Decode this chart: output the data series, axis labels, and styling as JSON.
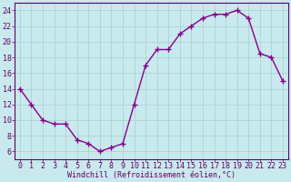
{
  "x": [
    0,
    1,
    2,
    3,
    4,
    5,
    6,
    7,
    8,
    9,
    10,
    11,
    12,
    13,
    14,
    15,
    16,
    17,
    18,
    19,
    20,
    21,
    22,
    23
  ],
  "y": [
    14,
    12,
    10,
    9.5,
    9.5,
    7.5,
    7,
    6,
    6.5,
    7,
    12,
    17,
    19,
    19,
    21,
    22,
    23,
    23.5,
    23.5,
    24,
    23,
    18.5,
    18,
    15
  ],
  "line_color": "#880088",
  "marker": "+",
  "marker_color": "#880088",
  "bg_color": "#c8eaee",
  "grid_color": "#aacccc",
  "xlabel": "Windchill (Refroidissement éolien,°C)",
  "ylabel_ticks": [
    6,
    8,
    10,
    12,
    14,
    16,
    18,
    20,
    22,
    24
  ],
  "xlim": [
    -0.5,
    23.5
  ],
  "ylim": [
    5.0,
    25.0
  ],
  "xtick_labels": [
    "0",
    "1",
    "2",
    "3",
    "4",
    "5",
    "6",
    "7",
    "8",
    "9",
    "10",
    "11",
    "12",
    "13",
    "14",
    "15",
    "16",
    "17",
    "18",
    "19",
    "20",
    "21",
    "22",
    "23"
  ],
  "title_color": "#660066",
  "xlabel_fontsize": 6,
  "tick_fontsize": 6,
  "line_width": 1.0,
  "marker_size": 4
}
